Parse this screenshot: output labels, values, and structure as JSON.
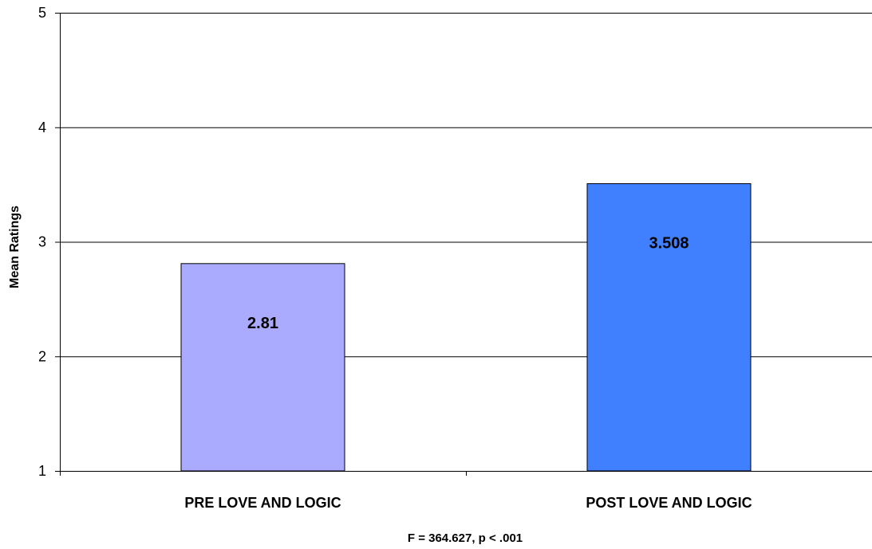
{
  "chart_data": {
    "type": "bar",
    "categories": [
      "PRE LOVE AND LOGIC",
      "POST LOVE AND LOGIC"
    ],
    "values": [
      2.81,
      3.508
    ],
    "data_labels": [
      "2.81",
      "3.508"
    ],
    "bar_colors": [
      "#aaaaff",
      "#4080ff"
    ],
    "title": "",
    "xlabel": "F = 364.627, p < .001",
    "ylabel": "Mean Ratings",
    "ylim": [
      1,
      5
    ],
    "yticks": [
      1,
      2,
      3,
      4,
      5
    ],
    "ytick_labels": [
      "1",
      "2",
      "3",
      "4",
      "5"
    ],
    "grid": true,
    "legend": "none"
  }
}
